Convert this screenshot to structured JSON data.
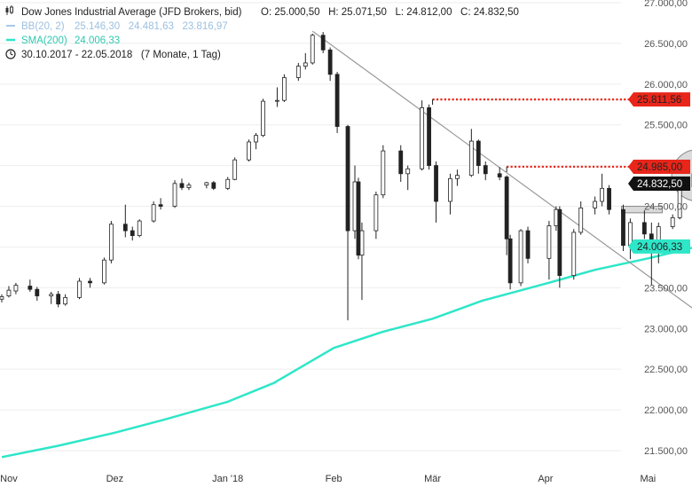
{
  "header": {
    "instrument": "Dow Jones Industrial Average (JFD Brokers, bid)",
    "ohlc": "O: 25.000,50   H: 25.071,50   L: 24.812,00   C: 24.832,50",
    "bb_label": "BB(20, 2)",
    "bb_values": "25.146,30   24.481,63   23.816,97",
    "sma_label": "SMA(200)",
    "sma_value": "24.006,33",
    "range": "30.10.2017 - 22.05.2018   (7 Monate, 1 Tag)"
  },
  "colors": {
    "sma": "#2ee6c8",
    "resistance": "#e8261a",
    "trendline": "#999999",
    "candle": "#222222",
    "bb": "#a8c8e8",
    "price_badge": "#111111"
  },
  "icons": [
    "candlestick-icon",
    "clock-icon"
  ],
  "chart_data": {
    "type": "candlestick",
    "y_axis": {
      "ylim": [
        21250,
        27000
      ],
      "ticks": [
        "27.000,00",
        "26.500,00",
        "26.000,00",
        "25.500,00",
        "25.000,00",
        "24.500,00",
        "24.000,00",
        "23.500,00",
        "23.000,00",
        "22.500,00",
        "22.000,00",
        "21.500,00"
      ],
      "tick_values": [
        27000,
        26500,
        26000,
        25500,
        25000,
        24500,
        24000,
        23500,
        23000,
        22500,
        22000,
        21500
      ]
    },
    "x_axis": {
      "xlim": [
        "2017-10-30",
        "2018-05-22"
      ],
      "labels": [
        {
          "text": "Nov",
          "date": "2017-11-01"
        },
        {
          "text": "Dez",
          "date": "2017-12-01"
        },
        {
          "text": "Jan '18",
          "date": "2018-01-02"
        },
        {
          "text": "Feb",
          "date": "2018-02-01"
        },
        {
          "text": "Mär",
          "date": "2018-03-01"
        },
        {
          "text": "Apr",
          "date": "2018-04-02"
        },
        {
          "text": "Mai",
          "date": "2018-05-01"
        }
      ]
    },
    "price_labels": [
      {
        "text": "25.811,56",
        "value": 25811.56,
        "kind": "resistance"
      },
      {
        "text": "24.985,00",
        "value": 24985.0,
        "kind": "resistance"
      },
      {
        "text": "24.832,50",
        "value": 24832.5,
        "kind": "last"
      },
      {
        "text": "24.006,33",
        "value": 24006.33,
        "kind": "sma"
      }
    ],
    "resistance_lines": [
      {
        "value": 25811.56,
        "from": "2018-03-01",
        "to": "2018-05-22"
      },
      {
        "value": 24985.0,
        "from": "2018-03-22",
        "to": "2018-05-22"
      }
    ],
    "trendline": {
      "from": {
        "date": "2018-01-26",
        "value": 26650
      },
      "to": {
        "date": "2018-05-31",
        "value": 22700
      }
    },
    "sma200": [
      {
        "date": "2017-10-30",
        "value": 21420
      },
      {
        "date": "2017-11-15",
        "value": 21560
      },
      {
        "date": "2017-12-01",
        "value": 21720
      },
      {
        "date": "2017-12-15",
        "value": 21880
      },
      {
        "date": "2018-01-02",
        "value": 22100
      },
      {
        "date": "2018-01-15",
        "value": 22330
      },
      {
        "date": "2018-02-01",
        "value": 22760
      },
      {
        "date": "2018-02-15",
        "value": 22960
      },
      {
        "date": "2018-03-01",
        "value": 23120
      },
      {
        "date": "2018-03-15",
        "value": 23340
      },
      {
        "date": "2018-04-02",
        "value": 23550
      },
      {
        "date": "2018-04-16",
        "value": 23720
      },
      {
        "date": "2018-05-01",
        "value": 23860
      },
      {
        "date": "2018-05-15",
        "value": 24006
      }
    ],
    "candles": [
      {
        "date": "2017-10-30",
        "o": 23360,
        "h": 23420,
        "l": 23320,
        "c": 23390
      },
      {
        "date": "2017-11-01",
        "o": 23400,
        "h": 23520,
        "l": 23380,
        "c": 23470
      },
      {
        "date": "2017-11-03",
        "o": 23460,
        "h": 23560,
        "l": 23420,
        "c": 23530
      },
      {
        "date": "2017-11-07",
        "o": 23520,
        "h": 23600,
        "l": 23450,
        "c": 23480
      },
      {
        "date": "2017-11-09",
        "o": 23480,
        "h": 23510,
        "l": 23340,
        "c": 23400
      },
      {
        "date": "2017-11-13",
        "o": 23400,
        "h": 23450,
        "l": 23300,
        "c": 23420
      },
      {
        "date": "2017-11-15",
        "o": 23420,
        "h": 23460,
        "l": 23260,
        "c": 23300
      },
      {
        "date": "2017-11-17",
        "o": 23300,
        "h": 23420,
        "l": 23280,
        "c": 23380
      },
      {
        "date": "2017-11-21",
        "o": 23380,
        "h": 23620,
        "l": 23360,
        "c": 23580
      },
      {
        "date": "2017-11-24",
        "o": 23580,
        "h": 23620,
        "l": 23500,
        "c": 23560
      },
      {
        "date": "2017-11-28",
        "o": 23560,
        "h": 23870,
        "l": 23540,
        "c": 23840
      },
      {
        "date": "2017-11-30",
        "o": 23840,
        "h": 24320,
        "l": 23800,
        "c": 24280
      },
      {
        "date": "2017-12-04",
        "o": 24280,
        "h": 24520,
        "l": 24120,
        "c": 24200
      },
      {
        "date": "2017-12-06",
        "o": 24200,
        "h": 24250,
        "l": 24080,
        "c": 24140
      },
      {
        "date": "2017-12-08",
        "o": 24140,
        "h": 24340,
        "l": 24120,
        "c": 24320
      },
      {
        "date": "2017-12-12",
        "o": 24320,
        "h": 24560,
        "l": 24300,
        "c": 24520
      },
      {
        "date": "2017-12-14",
        "o": 24520,
        "h": 24600,
        "l": 24460,
        "c": 24500
      },
      {
        "date": "2017-12-18",
        "o": 24500,
        "h": 24820,
        "l": 24480,
        "c": 24780
      },
      {
        "date": "2017-12-20",
        "o": 24780,
        "h": 24840,
        "l": 24700,
        "c": 24730
      },
      {
        "date": "2017-12-22",
        "o": 24730,
        "h": 24790,
        "l": 24700,
        "c": 24760
      },
      {
        "date": "2017-12-27",
        "o": 24760,
        "h": 24800,
        "l": 24720,
        "c": 24790
      },
      {
        "date": "2017-12-29",
        "o": 24790,
        "h": 24810,
        "l": 24700,
        "c": 24720
      },
      {
        "date": "2018-01-02",
        "o": 24720,
        "h": 24860,
        "l": 24700,
        "c": 24830
      },
      {
        "date": "2018-01-04",
        "o": 24830,
        "h": 25100,
        "l": 24820,
        "c": 25070
      },
      {
        "date": "2018-01-08",
        "o": 25070,
        "h": 25320,
        "l": 25050,
        "c": 25290
      },
      {
        "date": "2018-01-10",
        "o": 25290,
        "h": 25400,
        "l": 25200,
        "c": 25370
      },
      {
        "date": "2018-01-12",
        "o": 25370,
        "h": 25820,
        "l": 25350,
        "c": 25790
      },
      {
        "date": "2018-01-16",
        "o": 25790,
        "h": 25960,
        "l": 25720,
        "c": 25800
      },
      {
        "date": "2018-01-18",
        "o": 25800,
        "h": 26120,
        "l": 25780,
        "c": 26080
      },
      {
        "date": "2018-01-22",
        "o": 26080,
        "h": 26260,
        "l": 26040,
        "c": 26220
      },
      {
        "date": "2018-01-24",
        "o": 26220,
        "h": 26380,
        "l": 26180,
        "c": 26260
      },
      {
        "date": "2018-01-26",
        "o": 26260,
        "h": 26620,
        "l": 26240,
        "c": 26600
      },
      {
        "date": "2018-01-29",
        "o": 26600,
        "h": 26640,
        "l": 26380,
        "c": 26420
      },
      {
        "date": "2018-01-31",
        "o": 26420,
        "h": 26450,
        "l": 26040,
        "c": 26120
      },
      {
        "date": "2018-02-02",
        "o": 26120,
        "h": 26150,
        "l": 25400,
        "c": 25480
      },
      {
        "date": "2018-02-05",
        "o": 25480,
        "h": 25500,
        "l": 23100,
        "c": 24200
      },
      {
        "date": "2018-02-07",
        "o": 24200,
        "h": 25000,
        "l": 24100,
        "c": 24800
      },
      {
        "date": "2018-02-08",
        "o": 24800,
        "h": 24850,
        "l": 23850,
        "c": 23900
      },
      {
        "date": "2018-02-09",
        "o": 23900,
        "h": 24300,
        "l": 23350,
        "c": 24200
      },
      {
        "date": "2018-02-13",
        "o": 24200,
        "h": 24680,
        "l": 24100,
        "c": 24640
      },
      {
        "date": "2018-02-15",
        "o": 24640,
        "h": 25250,
        "l": 24600,
        "c": 25180
      },
      {
        "date": "2018-02-20",
        "o": 25180,
        "h": 25250,
        "l": 24800,
        "c": 24900
      },
      {
        "date": "2018-02-22",
        "o": 24900,
        "h": 25000,
        "l": 24700,
        "c": 24960
      },
      {
        "date": "2018-02-26",
        "o": 24960,
        "h": 25800,
        "l": 24940,
        "c": 25710
      },
      {
        "date": "2018-02-28",
        "o": 25710,
        "h": 25750,
        "l": 24950,
        "c": 25000
      },
      {
        "date": "2018-03-02",
        "o": 25000,
        "h": 25050,
        "l": 24300,
        "c": 24560
      },
      {
        "date": "2018-03-06",
        "o": 24560,
        "h": 24900,
        "l": 24400,
        "c": 24840
      },
      {
        "date": "2018-03-08",
        "o": 24840,
        "h": 24950,
        "l": 24750,
        "c": 24880
      },
      {
        "date": "2018-03-12",
        "o": 24880,
        "h": 25450,
        "l": 24860,
        "c": 25300
      },
      {
        "date": "2018-03-14",
        "o": 25300,
        "h": 25320,
        "l": 24900,
        "c": 25000
      },
      {
        "date": "2018-03-16",
        "o": 25000,
        "h": 25050,
        "l": 24820,
        "c": 24900
      },
      {
        "date": "2018-03-20",
        "o": 24900,
        "h": 24980,
        "l": 24820,
        "c": 24860
      },
      {
        "date": "2018-03-22",
        "o": 24860,
        "h": 24880,
        "l": 23900,
        "c": 24100
      },
      {
        "date": "2018-03-23",
        "o": 24100,
        "h": 24150,
        "l": 23480,
        "c": 23560
      },
      {
        "date": "2018-03-26",
        "o": 23560,
        "h": 24220,
        "l": 23520,
        "c": 24200
      },
      {
        "date": "2018-03-28",
        "o": 24200,
        "h": 24250,
        "l": 23800,
        "c": 23860
      },
      {
        "date": "2018-04-03",
        "o": 23860,
        "h": 24320,
        "l": 23600,
        "c": 24260
      },
      {
        "date": "2018-04-05",
        "o": 24260,
        "h": 24500,
        "l": 24200,
        "c": 24460
      },
      {
        "date": "2018-04-06",
        "o": 24460,
        "h": 24500,
        "l": 23500,
        "c": 23650
      },
      {
        "date": "2018-04-10",
        "o": 23650,
        "h": 24220,
        "l": 23600,
        "c": 24180
      },
      {
        "date": "2018-04-12",
        "o": 24180,
        "h": 24560,
        "l": 24150,
        "c": 24480
      },
      {
        "date": "2018-04-16",
        "o": 24480,
        "h": 24620,
        "l": 24400,
        "c": 24560
      },
      {
        "date": "2018-04-18",
        "o": 24560,
        "h": 24900,
        "l": 24500,
        "c": 24720
      },
      {
        "date": "2018-04-20",
        "o": 24720,
        "h": 24760,
        "l": 24400,
        "c": 24460
      },
      {
        "date": "2018-04-24",
        "o": 24460,
        "h": 24520,
        "l": 23950,
        "c": 24020
      },
      {
        "date": "2018-04-26",
        "o": 24020,
        "h": 24350,
        "l": 23850,
        "c": 24300
      },
      {
        "date": "2018-04-30",
        "o": 24300,
        "h": 24450,
        "l": 24100,
        "c": 24160
      },
      {
        "date": "2018-05-02",
        "o": 24160,
        "h": 24300,
        "l": 23530,
        "c": 23950
      },
      {
        "date": "2018-05-04",
        "o": 23950,
        "h": 24300,
        "l": 23800,
        "c": 24250
      },
      {
        "date": "2018-05-08",
        "o": 24250,
        "h": 24400,
        "l": 24220,
        "c": 24360
      },
      {
        "date": "2018-05-10",
        "o": 24360,
        "h": 24780,
        "l": 24340,
        "c": 24740
      },
      {
        "date": "2018-05-14",
        "o": 24740,
        "h": 24950,
        "l": 24680,
        "c": 24900
      },
      {
        "date": "2018-05-16",
        "o": 24900,
        "h": 24930,
        "l": 24600,
        "c": 24680
      },
      {
        "date": "2018-05-18",
        "o": 24680,
        "h": 24760,
        "l": 24620,
        "c": 24700
      },
      {
        "date": "2018-05-21",
        "o": 24700,
        "h": 25071,
        "l": 24680,
        "c": 25000
      },
      {
        "date": "2018-05-22",
        "o": 25000,
        "h": 25071.5,
        "l": 24812,
        "c": 24832.5
      }
    ]
  }
}
